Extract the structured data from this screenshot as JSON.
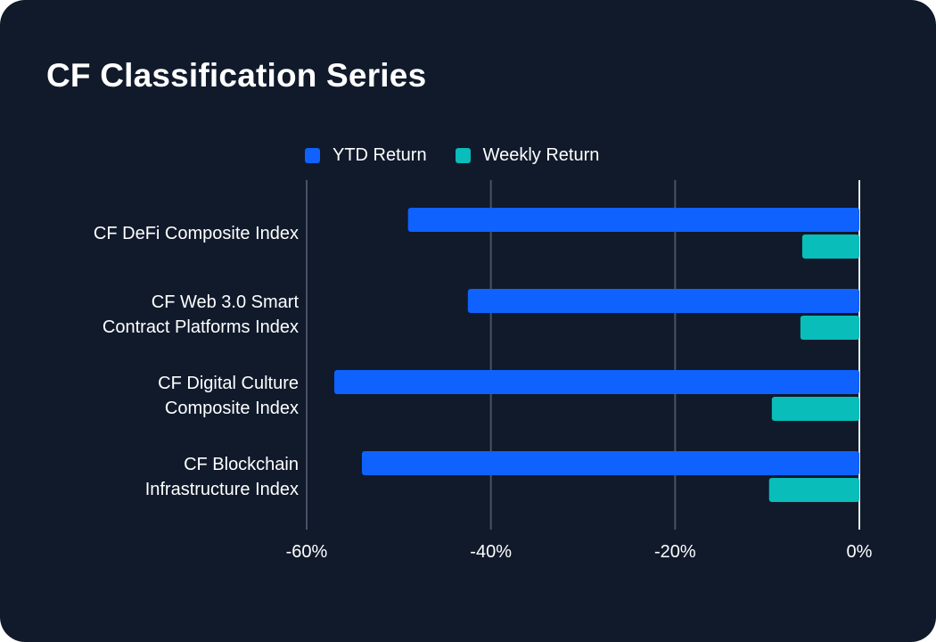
{
  "chart_data": {
    "type": "bar",
    "orientation": "horizontal",
    "title": "CF Classification Series",
    "categories": [
      "CF DeFi Composite Index",
      "CF Web 3.0 Smart Contract Platforms Index",
      "CF Digital Culture Composite Index",
      "CF Blockchain Infrastructure Index"
    ],
    "category_lines": [
      [
        "CF DeFi Composite Index"
      ],
      [
        "CF Web 3.0 Smart",
        "Contract Platforms Index"
      ],
      [
        "CF Digital Culture",
        "Composite Index"
      ],
      [
        "CF Blockchain",
        "Infrastructure Index"
      ]
    ],
    "series": [
      {
        "name": "YTD Return",
        "color": "#0f62fe",
        "values": [
          -49.0,
          -42.5,
          -57.0,
          -54.0
        ]
      },
      {
        "name": "Weekly Return",
        "color": "#08bdba",
        "values": [
          -6.2,
          -6.4,
          -9.5,
          -9.8
        ]
      }
    ],
    "xlim": [
      -60,
      0
    ],
    "xticks": [
      -60,
      -40,
      -20,
      0
    ],
    "xtick_labels": [
      "-60%",
      "-40%",
      "-20%",
      "0%"
    ],
    "grid": true,
    "legend_position": "top"
  },
  "colors": {
    "background": "#101a2b",
    "text": "#ffffff",
    "grid": "#4a5261",
    "zero_line": "#e8e8e8"
  }
}
